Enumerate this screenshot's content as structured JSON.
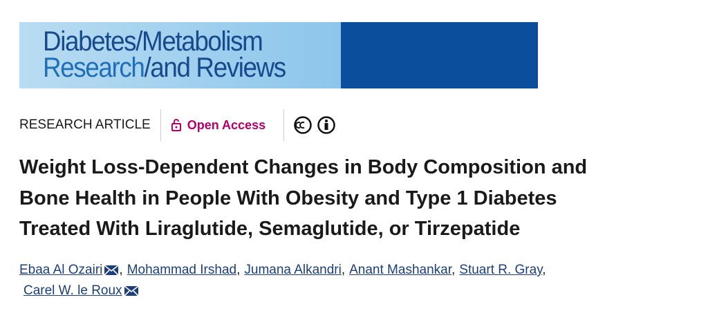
{
  "journal": {
    "line1": [
      "Diabetes",
      "/Metabolism"
    ],
    "line2": [
      "Research",
      "/and Reviews"
    ]
  },
  "article_type": "RESEARCH ARTICLE",
  "access": "Open Access",
  "title_lines": [
    "Weight Loss-Dependent Changes in Body Composition and",
    "Bone Health in People With Obesity and Type 1 Diabetes",
    "Treated With Liraglutide, Semaglutide, or Tirzepatide"
  ],
  "separator": ",",
  "authors": [
    {
      "name": "Ebaa Al Ozairi",
      "email": true
    },
    {
      "name": "Mohammad Irshad",
      "email": false
    },
    {
      "name": "Jumana Alkandri",
      "email": false
    },
    {
      "name": "Anant Mashankar",
      "email": false
    },
    {
      "name": "Stuart R. Gray",
      "email": false
    },
    {
      "name": "Carel W. le Roux",
      "email": true
    }
  ]
}
